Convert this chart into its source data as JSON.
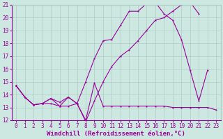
{
  "xlabel": "Windchill (Refroidissement éolien,°C)",
  "xlim": [
    -0.5,
    23.5
  ],
  "ylim": [
    12,
    21
  ],
  "xticks": [
    0,
    1,
    2,
    3,
    4,
    5,
    6,
    7,
    8,
    9,
    10,
    11,
    12,
    13,
    14,
    15,
    16,
    17,
    18,
    19,
    20,
    21,
    22,
    23
  ],
  "yticks": [
    12,
    13,
    14,
    15,
    16,
    17,
    18,
    19,
    20,
    21
  ],
  "background_color": "#cce8e0",
  "grid_color": "#aaccc4",
  "line_color": "#990099",
  "line1_x": [
    0,
    1,
    2,
    3,
    4,
    5,
    6,
    7,
    8,
    9,
    10,
    11,
    12,
    13,
    14,
    15,
    16,
    17,
    18,
    19,
    20,
    21,
    22,
    23
  ],
  "line1_y": [
    14.7,
    13.8,
    13.2,
    13.3,
    13.3,
    13.1,
    13.1,
    13.3,
    12.0,
    14.9,
    13.1,
    13.1,
    13.1,
    13.1,
    13.1,
    13.1,
    13.1,
    13.1,
    13.0,
    13.0,
    13.0,
    13.0,
    13.0,
    12.8
  ],
  "line2_x": [
    0,
    1,
    2,
    3,
    4,
    5,
    6,
    7,
    8,
    9,
    10,
    11,
    12,
    13,
    14,
    15,
    16,
    17,
    18,
    19,
    20,
    21,
    22,
    23
  ],
  "line2_y": [
    14.7,
    13.8,
    13.2,
    13.3,
    13.7,
    13.4,
    13.8,
    13.3,
    11.9,
    13.5,
    15.0,
    16.2,
    17.0,
    17.5,
    18.2,
    19.0,
    19.8,
    20.0,
    20.5,
    21.0,
    21.2,
    20.3,
    null,
    null
  ],
  "line3_x": [
    0,
    1,
    2,
    3,
    4,
    5,
    6,
    7,
    8,
    9,
    10,
    11,
    12,
    13,
    14,
    15,
    16,
    17,
    18,
    19,
    20,
    21,
    22
  ],
  "line3_y": [
    14.7,
    13.8,
    13.2,
    13.3,
    13.7,
    13.1,
    13.8,
    13.3,
    15.0,
    16.8,
    18.2,
    18.3,
    19.4,
    20.5,
    20.5,
    21.1,
    21.2,
    20.3,
    19.8,
    18.3,
    15.9,
    13.5,
    15.9
  ],
  "fontsize_xlabel": 6.5,
  "tick_label_fontsize": 5.5
}
